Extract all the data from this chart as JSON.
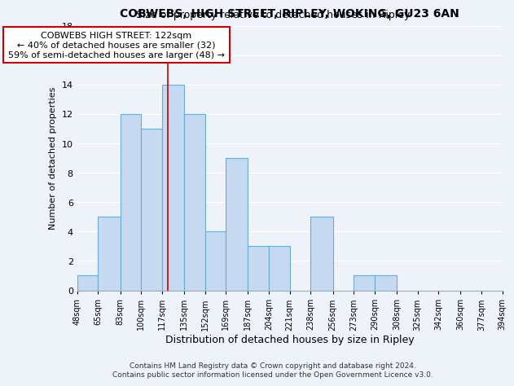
{
  "title": "COBWEBS, HIGH STREET, RIPLEY, WOKING, GU23 6AN",
  "subtitle": "Size of property relative to detached houses in Ripley",
  "xlabel": "Distribution of detached houses by size in Ripley",
  "ylabel": "Number of detached properties",
  "bin_edges": [
    48,
    65,
    83,
    100,
    117,
    135,
    152,
    169,
    187,
    204,
    221,
    238,
    256,
    273,
    290,
    308,
    325,
    342,
    360,
    377,
    394
  ],
  "counts": [
    1,
    5,
    12,
    11,
    14,
    12,
    4,
    9,
    3,
    3,
    0,
    5,
    0,
    1,
    1,
    0,
    0,
    0,
    0,
    0
  ],
  "bar_color": "#c6d9f0",
  "bar_edge_color": "#6aadce",
  "reference_line_x": 122,
  "reference_line_color": "#cc0000",
  "annotation_text": "COBWEBS HIGH STREET: 122sqm\n← 40% of detached houses are smaller (32)\n59% of semi-detached houses are larger (48) →",
  "annotation_box_color": "white",
  "annotation_box_edge_color": "#cc0000",
  "ylim": [
    0,
    18
  ],
  "yticks": [
    0,
    2,
    4,
    6,
    8,
    10,
    12,
    14,
    16,
    18
  ],
  "tick_labels": [
    "48sqm",
    "65sqm",
    "83sqm",
    "100sqm",
    "117sqm",
    "135sqm",
    "152sqm",
    "169sqm",
    "187sqm",
    "204sqm",
    "221sqm",
    "238sqm",
    "256sqm",
    "273sqm",
    "290sqm",
    "308sqm",
    "325sqm",
    "342sqm",
    "360sqm",
    "377sqm",
    "394sqm"
  ],
  "footer_text": "Contains HM Land Registry data © Crown copyright and database right 2024.\nContains public sector information licensed under the Open Government Licence v3.0.",
  "background_color": "#eef2f9",
  "grid_color": "white",
  "title_fontsize": 10,
  "subtitle_fontsize": 9,
  "xlabel_fontsize": 9,
  "ylabel_fontsize": 8,
  "tick_fontsize": 7,
  "annotation_fontsize": 8,
  "footer_fontsize": 6.5
}
